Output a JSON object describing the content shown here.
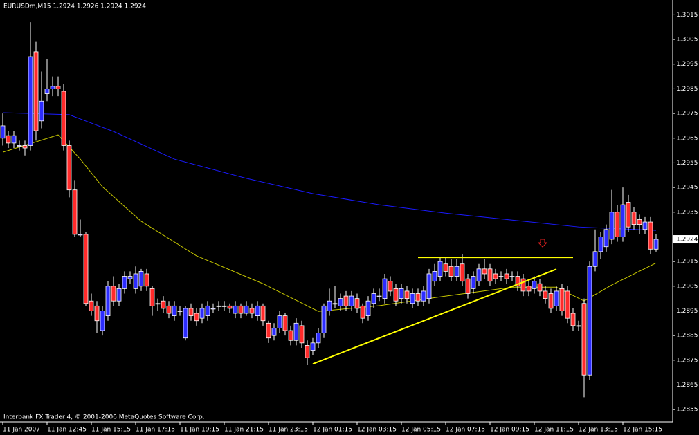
{
  "header": {
    "symbol_line": "EURUSDm,M15  1.2924 1.2926 1.2924 1.2924",
    "footer": "Interbank FX Trader 4, © 2001-2006 MetaQuotes Software Corp."
  },
  "chart_data": {
    "type": "candlestick",
    "up_color": "#2c2cff",
    "down_color": "#ff2a2a",
    "wick_color": "#ffffff",
    "ylim": [
      1.285,
      1.3021
    ],
    "yticks": [
      1.3015,
      1.3005,
      1.2995,
      1.2985,
      1.2975,
      1.2965,
      1.2955,
      1.2945,
      1.2935,
      1.2915,
      1.2905,
      1.2895,
      1.2885,
      1.2875,
      1.2865,
      1.2855
    ],
    "last_price": 1.2924,
    "categories": [
      "11 Jan 2007",
      null,
      null,
      null,
      null,
      null,
      null,
      null,
      "11 Jan 12:45",
      null,
      null,
      null,
      null,
      null,
      null,
      null,
      "11 Jan 15:15",
      null,
      null,
      null,
      null,
      null,
      null,
      null,
      "11 Jan 17:15",
      null,
      null,
      null,
      null,
      null,
      null,
      null,
      "11 Jan 19:15",
      null,
      null,
      null,
      null,
      null,
      null,
      null,
      "11 Jan 21:15",
      null,
      null,
      null,
      null,
      null,
      null,
      null,
      "11 Jan 23:15",
      null,
      null,
      null,
      null,
      null,
      null,
      null,
      "12 Jan 01:15",
      null,
      null,
      null,
      null,
      null,
      null,
      null,
      "12 Jan 03:15",
      null,
      null,
      null,
      null,
      null,
      null,
      null,
      "12 Jan 05:15",
      null,
      null,
      null,
      null,
      null,
      null,
      null,
      "12 Jan 07:15",
      null,
      null,
      null,
      null,
      null,
      null,
      null,
      "12 Jan 09:15",
      null,
      null,
      null,
      null,
      null,
      null,
      null,
      "12 Jan 11:15",
      null,
      null,
      null,
      null,
      null,
      null,
      null,
      "12 Jan 13:15",
      null,
      null,
      null,
      null,
      null,
      null,
      null,
      "12 Jan 15:15",
      null,
      null,
      null,
      null,
      null,
      null
    ],
    "candles": [
      [
        1.2965,
        1.2975,
        1.2962,
        1.297
      ],
      [
        1.2966,
        1.2968,
        1.2961,
        1.2963
      ],
      [
        1.2963,
        1.2968,
        1.2961,
        1.2966
      ],
      [
        1.2962,
        1.2964,
        1.296,
        1.2962
      ],
      [
        1.2962,
        1.2964,
        1.2958,
        1.2961
      ],
      [
        1.2962,
        1.3012,
        1.296,
        1.2998
      ],
      [
        1.3,
        1.3004,
        1.2964,
        1.2968
      ],
      [
        1.2972,
        1.2992,
        1.2969,
        1.298
      ],
      [
        1.2983,
        1.2997,
        1.298,
        1.2985
      ],
      [
        1.2985,
        1.299,
        1.2982,
        1.2986
      ],
      [
        1.2986,
        1.299,
        1.2982,
        1.2985
      ],
      [
        1.2984,
        1.2987,
        1.296,
        1.2962
      ],
      [
        1.2962,
        1.2964,
        1.2941,
        1.2944
      ],
      [
        1.2944,
        1.2948,
        1.2925,
        1.2926
      ],
      [
        1.2926,
        1.2932,
        1.2925,
        1.2926
      ],
      [
        1.2926,
        1.2927,
        1.2897,
        1.2898
      ],
      [
        1.2899,
        1.2902,
        1.2893,
        1.2895
      ],
      [
        1.2897,
        1.2899,
        1.2886,
        1.2891
      ],
      [
        1.2887,
        1.2897,
        1.2885,
        1.2895
      ],
      [
        1.2893,
        1.2907,
        1.2891,
        1.2905
      ],
      [
        1.2905,
        1.2909,
        1.2897,
        1.2899
      ],
      [
        1.2899,
        1.2906,
        1.2897,
        1.2904
      ],
      [
        1.2904,
        1.2911,
        1.2902,
        1.2909
      ],
      [
        1.2908,
        1.2911,
        1.2906,
        1.2909
      ],
      [
        1.2904,
        1.2913,
        1.2902,
        1.291
      ],
      [
        1.2905,
        1.2912,
        1.2903,
        1.2911
      ],
      [
        1.291,
        1.2912,
        1.2903,
        1.2905
      ],
      [
        1.2904,
        1.2905,
        1.2893,
        1.2897
      ],
      [
        1.2898,
        1.29,
        1.2895,
        1.2898
      ],
      [
        1.2899,
        1.2901,
        1.2894,
        1.2896
      ],
      [
        1.2897,
        1.2899,
        1.2892,
        1.2894
      ],
      [
        1.2893,
        1.2899,
        1.2891,
        1.2897
      ],
      [
        1.2895,
        1.2897,
        1.2893,
        1.2895
      ],
      [
        1.2884,
        1.2897,
        1.2883,
        1.2896
      ],
      [
        1.2896,
        1.2898,
        1.2891,
        1.2893
      ],
      [
        1.2894,
        1.2896,
        1.2889,
        1.2891
      ],
      [
        1.2892,
        1.2898,
        1.289,
        1.2896
      ],
      [
        1.2893,
        1.2899,
        1.2891,
        1.2897
      ],
      [
        1.2896,
        1.2898,
        1.2894,
        1.2896
      ],
      [
        1.2897,
        1.2899,
        1.2895,
        1.2897
      ],
      [
        1.2897,
        1.2899,
        1.2895,
        1.2897
      ],
      [
        1.2897,
        1.2898,
        1.2894,
        1.2896
      ],
      [
        1.2894,
        1.2899,
        1.2892,
        1.2897
      ],
      [
        1.2897,
        1.2898,
        1.2892,
        1.2894
      ],
      [
        1.2894,
        1.2899,
        1.2893,
        1.2897
      ],
      [
        1.2896,
        1.2898,
        1.2892,
        1.2894
      ],
      [
        1.2893,
        1.2899,
        1.2891,
        1.2897
      ],
      [
        1.2897,
        1.2898,
        1.2889,
        1.2891
      ],
      [
        1.289,
        1.2891,
        1.2882,
        1.2884
      ],
      [
        1.2885,
        1.289,
        1.2883,
        1.2888
      ],
      [
        1.2888,
        1.2895,
        1.2886,
        1.2893
      ],
      [
        1.2893,
        1.2894,
        1.2885,
        1.2887
      ],
      [
        1.2887,
        1.2889,
        1.2881,
        1.2883
      ],
      [
        1.2883,
        1.2892,
        1.2881,
        1.289
      ],
      [
        1.2889,
        1.2891,
        1.288,
        1.2882
      ],
      [
        1.2881,
        1.2883,
        1.2873,
        1.2876
      ],
      [
        1.2879,
        1.2884,
        1.2877,
        1.2882
      ],
      [
        1.2882,
        1.2888,
        1.288,
        1.2886
      ],
      [
        1.2886,
        1.2898,
        1.2884,
        1.2897
      ],
      [
        1.2895,
        1.2904,
        1.2893,
        1.2899
      ],
      [
        1.2898,
        1.2905,
        1.2896,
        1.2898
      ],
      [
        1.2897,
        1.2902,
        1.2895,
        1.29
      ],
      [
        1.2901,
        1.2903,
        1.2895,
        1.2897
      ],
      [
        1.2897,
        1.2903,
        1.2895,
        1.2901
      ],
      [
        1.29,
        1.2902,
        1.2894,
        1.2896
      ],
      [
        1.2897,
        1.2898,
        1.289,
        1.2892
      ],
      [
        1.2893,
        1.2901,
        1.2891,
        1.2899
      ],
      [
        1.2898,
        1.2904,
        1.2896,
        1.2902
      ],
      [
        1.2901,
        1.2904,
        1.2899,
        1.2901
      ],
      [
        1.29,
        1.291,
        1.2898,
        1.2908
      ],
      [
        1.2907,
        1.2909,
        1.2901,
        1.2903
      ],
      [
        1.2904,
        1.2906,
        1.2897,
        1.2899
      ],
      [
        1.29,
        1.2906,
        1.2898,
        1.2904
      ],
      [
        1.2903,
        1.2905,
        1.2898,
        1.29
      ],
      [
        1.2898,
        1.2904,
        1.2896,
        1.2902
      ],
      [
        1.2902,
        1.2904,
        1.2897,
        1.2899
      ],
      [
        1.2899,
        1.2905,
        1.2897,
        1.2903
      ],
      [
        1.29,
        1.2912,
        1.2898,
        1.291
      ],
      [
        1.2907,
        1.2914,
        1.2905,
        1.2911
      ],
      [
        1.2909,
        1.2917,
        1.2907,
        1.2915
      ],
      [
        1.2914,
        1.2917,
        1.2909,
        1.2911
      ],
      [
        1.2913,
        1.2916,
        1.2907,
        1.2909
      ],
      [
        1.2909,
        1.2916,
        1.2907,
        1.2913
      ],
      [
        1.2914,
        1.2918,
        1.2905,
        1.2907
      ],
      [
        1.2908,
        1.291,
        1.29,
        1.2902
      ],
      [
        1.2904,
        1.2911,
        1.2902,
        1.2909
      ],
      [
        1.2907,
        1.2914,
        1.2905,
        1.2912
      ],
      [
        1.2912,
        1.2916,
        1.2908,
        1.291
      ],
      [
        1.2912,
        1.2914,
        1.2905,
        1.2907
      ],
      [
        1.291,
        1.2912,
        1.2906,
        1.2908
      ],
      [
        1.2909,
        1.2911,
        1.2907,
        1.2909
      ],
      [
        1.291,
        1.2912,
        1.2906,
        1.2908
      ],
      [
        1.2909,
        1.2911,
        1.2907,
        1.2909
      ],
      [
        1.2909,
        1.2911,
        1.2903,
        1.2905
      ],
      [
        1.2908,
        1.291,
        1.2901,
        1.2903
      ],
      [
        1.2905,
        1.2907,
        1.2901,
        1.2903
      ],
      [
        1.2904,
        1.2909,
        1.2902,
        1.2907
      ],
      [
        1.2906,
        1.2908,
        1.2901,
        1.2903
      ],
      [
        1.2903,
        1.2905,
        1.2898,
        1.29
      ],
      [
        1.2902,
        1.2904,
        1.2894,
        1.2896
      ],
      [
        1.2897,
        1.2905,
        1.2895,
        1.2903
      ],
      [
        1.2904,
        1.2906,
        1.2893,
        1.2895
      ],
      [
        1.2903,
        1.2905,
        1.289,
        1.2892
      ],
      [
        1.2894,
        1.2896,
        1.2887,
        1.2889
      ],
      [
        1.2889,
        1.2891,
        1.2887,
        1.2889
      ],
      [
        1.2898,
        1.29,
        1.286,
        1.2869
      ],
      [
        1.2869,
        1.2915,
        1.2867,
        1.2913
      ],
      [
        1.2913,
        1.2928,
        1.2911,
        1.2919
      ],
      [
        1.2919,
        1.2927,
        1.2916,
        1.2925
      ],
      [
        1.2921,
        1.293,
        1.2919,
        1.2928
      ],
      [
        1.2924,
        1.2944,
        1.2922,
        1.2935
      ],
      [
        1.2935,
        1.2938,
        1.2923,
        1.2925
      ],
      [
        1.2925,
        1.2945,
        1.2923,
        1.2938
      ],
      [
        1.2939,
        1.2942,
        1.2927,
        1.2929
      ],
      [
        1.2935,
        1.2937,
        1.2928,
        1.293
      ],
      [
        1.2932,
        1.2934,
        1.2926,
        1.293
      ],
      [
        1.2928,
        1.2933,
        1.2926,
        1.2931
      ],
      [
        1.2931,
        1.2933,
        1.2918,
        1.292
      ],
      [
        1.292,
        1.2926,
        1.2919,
        1.2924
      ]
    ],
    "lines": [
      {
        "color": "#1a1aff",
        "x": [
          0,
          12,
          20,
          31,
          44,
          56,
          68,
          80,
          92,
          104,
          118
        ],
        "values": [
          1.29753,
          1.29745,
          1.29677,
          1.29565,
          1.29487,
          1.29425,
          1.2938,
          1.29346,
          1.29318,
          1.2929,
          1.29276
        ]
      },
      {
        "color": "#c8c800",
        "x": [
          0,
          10,
          14,
          18,
          25,
          35,
          47,
          57,
          68,
          80,
          92,
          100,
          105,
          110,
          118
        ],
        "values": [
          1.29593,
          1.29663,
          1.29565,
          1.29453,
          1.29313,
          1.29173,
          1.2906,
          1.28948,
          1.28971,
          1.2901,
          1.29046,
          1.29046,
          1.2899,
          1.29055,
          1.29144
        ]
      }
    ],
    "trendlines": [
      {
        "color": "#ffff00",
        "x": [
          56,
          100
        ],
        "values": [
          1.28735,
          1.29119
        ]
      },
      {
        "color": "#ffff00",
        "x": [
          75,
          103
        ],
        "values": [
          1.29167,
          1.29167
        ]
      }
    ]
  }
}
